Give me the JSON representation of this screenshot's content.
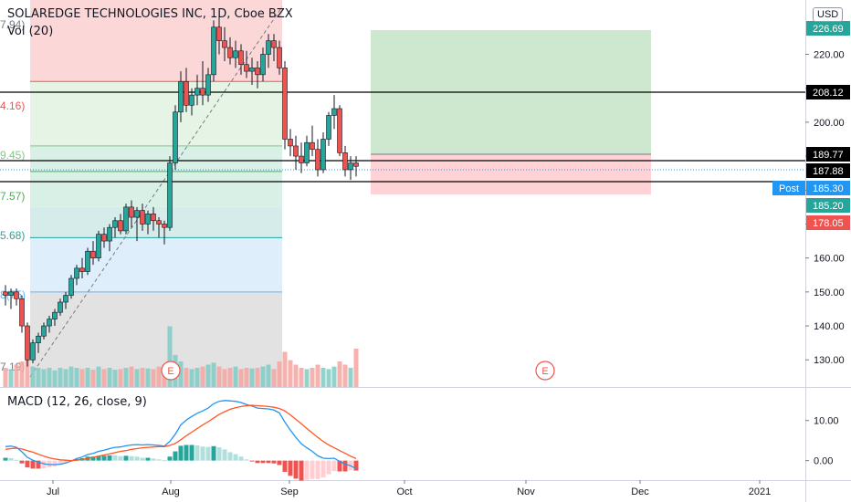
{
  "header": {
    "title": "SOLAREDGE TECHNOLOGIES INC, 1D, Cboe BZX",
    "volume_label": "Vol (20)",
    "currency": "USD"
  },
  "macd": {
    "label": "MACD (12, 26, close, 9)",
    "ticks": [
      "10.00",
      "0.00"
    ]
  },
  "colors": {
    "up": "#26a69a",
    "down": "#ef5350",
    "macd_line": "#2196f3",
    "signal_line": "#ff5722",
    "target_zone": "#c8e6c9",
    "stop_zone": "#ffcdd2"
  },
  "chart_data": {
    "type": "candlestick",
    "y_axis": {
      "ticks": [
        130,
        140,
        150,
        160,
        170,
        180,
        190,
        200,
        210,
        220
      ],
      "ylim": [
        122,
        236
      ]
    },
    "x_axis": {
      "labels": [
        "Jul",
        "Aug",
        "Sep",
        "Oct",
        "Nov",
        "Dec",
        "2021"
      ]
    },
    "price_labels": [
      {
        "value": "226.69",
        "color": "#26a69a"
      },
      {
        "value": "208.12",
        "color": "#000000"
      },
      {
        "value": "189.77",
        "color": "#000000"
      },
      {
        "value": "187.88",
        "color": "#000000"
      },
      {
        "value": "185.30",
        "color": "#2196f3",
        "tag": "Post"
      },
      {
        "value": "185.20",
        "color": "#26a69a"
      },
      {
        "value": "178.05",
        "color": "#ef5350"
      }
    ],
    "fib_labels": [
      "7.94)",
      "4.16)",
      "9.45)",
      "7.57)",
      "5.68)",
      "8(75)",
      "7.19)"
    ],
    "earnings_markers": [
      "E",
      "E"
    ],
    "candles": [
      [
        150,
        152,
        146,
        149
      ],
      [
        149,
        151,
        145,
        150
      ],
      [
        150,
        151,
        146,
        148
      ],
      [
        148,
        149,
        138,
        140
      ],
      [
        140,
        141,
        128,
        130
      ],
      [
        130,
        136,
        129,
        135
      ],
      [
        135,
        138,
        132,
        137
      ],
      [
        137,
        141,
        136,
        140
      ],
      [
        140,
        143,
        138,
        142
      ],
      [
        142,
        145,
        140,
        144
      ],
      [
        144,
        148,
        143,
        147
      ],
      [
        147,
        150,
        145,
        149
      ],
      [
        149,
        155,
        148,
        154
      ],
      [
        154,
        158,
        152,
        157
      ],
      [
        157,
        160,
        154,
        156
      ],
      [
        156,
        163,
        155,
        162
      ],
      [
        162,
        165,
        158,
        160
      ],
      [
        160,
        168,
        159,
        167
      ],
      [
        167,
        169,
        163,
        165
      ],
      [
        165,
        170,
        162,
        169
      ],
      [
        169,
        172,
        166,
        171
      ],
      [
        171,
        173,
        167,
        168
      ],
      [
        168,
        176,
        167,
        175
      ],
      [
        175,
        177,
        169,
        172
      ],
      [
        172,
        175,
        165,
        174
      ],
      [
        174,
        176,
        168,
        170
      ],
      [
        170,
        174,
        167,
        173
      ],
      [
        173,
        175,
        168,
        171
      ],
      [
        171,
        172,
        166,
        170
      ],
      [
        170,
        171,
        164,
        169
      ],
      [
        169,
        190,
        168,
        188
      ],
      [
        188,
        205,
        186,
        203
      ],
      [
        203,
        215,
        200,
        212
      ],
      [
        212,
        216,
        203,
        205
      ],
      [
        205,
        210,
        202,
        208
      ],
      [
        208,
        214,
        205,
        210
      ],
      [
        210,
        218,
        205,
        208
      ],
      [
        208,
        216,
        206,
        214
      ],
      [
        214,
        230,
        212,
        228
      ],
      [
        228,
        231,
        220,
        224
      ],
      [
        224,
        228,
        218,
        222
      ],
      [
        222,
        225,
        217,
        219
      ],
      [
        219,
        224,
        216,
        221
      ],
      [
        221,
        223,
        214,
        217
      ],
      [
        217,
        221,
        213,
        215
      ],
      [
        215,
        219,
        211,
        216
      ],
      [
        216,
        218,
        210,
        214
      ],
      [
        214,
        222,
        212,
        220
      ],
      [
        220,
        226,
        216,
        224
      ],
      [
        224,
        226,
        218,
        222
      ],
      [
        222,
        224,
        214,
        216
      ],
      [
        216,
        218,
        192,
        195
      ],
      [
        195,
        198,
        190,
        193
      ],
      [
        193,
        196,
        186,
        190
      ],
      [
        190,
        194,
        185,
        188
      ],
      [
        188,
        196,
        187,
        194
      ],
      [
        194,
        199,
        190,
        192
      ],
      [
        192,
        195,
        184,
        186
      ],
      [
        186,
        197,
        185,
        195
      ],
      [
        195,
        203,
        193,
        202
      ],
      [
        202,
        208,
        198,
        204
      ],
      [
        204,
        205,
        190,
        191
      ],
      [
        191,
        193,
        184,
        186
      ],
      [
        186,
        190,
        183,
        188
      ],
      [
        188,
        190,
        184,
        187
      ]
    ],
    "volume_levels": [
      0.3,
      0.28,
      0.35,
      0.4,
      0.55,
      0.32,
      0.3,
      0.28,
      0.3,
      0.26,
      0.3,
      0.28,
      0.32,
      0.3,
      0.28,
      0.3,
      0.27,
      0.32,
      0.28,
      0.3,
      0.27,
      0.28,
      0.3,
      0.32,
      0.28,
      0.3,
      0.29,
      0.28,
      0.32,
      0.35,
      0.95,
      0.5,
      0.4,
      0.3,
      0.28,
      0.3,
      0.32,
      0.35,
      0.38,
      0.32,
      0.28,
      0.3,
      0.32,
      0.28,
      0.3,
      0.29,
      0.3,
      0.32,
      0.35,
      0.28,
      0.4,
      0.55,
      0.42,
      0.35,
      0.3,
      0.28,
      0.3,
      0.35,
      0.3,
      0.28,
      0.32,
      0.4,
      0.35,
      0.3,
      0.6
    ],
    "macd_line": [
      3.5,
      3.6,
      3.3,
      2.2,
      0.8,
      0.1,
      -0.4,
      -0.8,
      -1.0,
      -1.0,
      -0.9,
      -0.6,
      -0.1,
      0.5,
      0.9,
      1.5,
      1.8,
      2.3,
      2.6,
      3.0,
      3.3,
      3.4,
      3.7,
      3.9,
      4.0,
      3.9,
      4.0,
      3.9,
      3.8,
      3.6,
      4.8,
      6.6,
      8.9,
      10.1,
      11.0,
      11.8,
      12.4,
      13.1,
      14.2,
      14.8,
      15.0,
      14.9,
      14.8,
      14.5,
      14.0,
      13.6,
      13.1,
      13.0,
      12.9,
      12.6,
      11.9,
      9.6,
      7.6,
      5.8,
      4.2,
      3.2,
      2.3,
      1.2,
      0.6,
      0.5,
      0.6,
      -0.2,
      -0.9,
      -1.3,
      -2.0
    ],
    "signal_line": [
      2.8,
      3.0,
      3.1,
      2.9,
      2.5,
      2.1,
      1.6,
      1.1,
      0.7,
      0.4,
      0.2,
      0.1,
      0.0,
      0.1,
      0.3,
      0.5,
      0.8,
      1.1,
      1.4,
      1.7,
      2.0,
      2.3,
      2.5,
      2.8,
      3.0,
      3.2,
      3.3,
      3.4,
      3.5,
      3.5,
      3.8,
      4.3,
      5.2,
      6.2,
      7.1,
      8.0,
      8.9,
      9.7,
      10.6,
      11.5,
      12.2,
      12.8,
      13.2,
      13.5,
      13.7,
      13.8,
      13.7,
      13.6,
      13.5,
      13.3,
      13.0,
      12.4,
      11.4,
      10.3,
      9.2,
      8.0,
      6.9,
      5.8,
      4.8,
      3.9,
      3.2,
      2.5,
      1.8,
      1.1,
      0.5
    ]
  }
}
